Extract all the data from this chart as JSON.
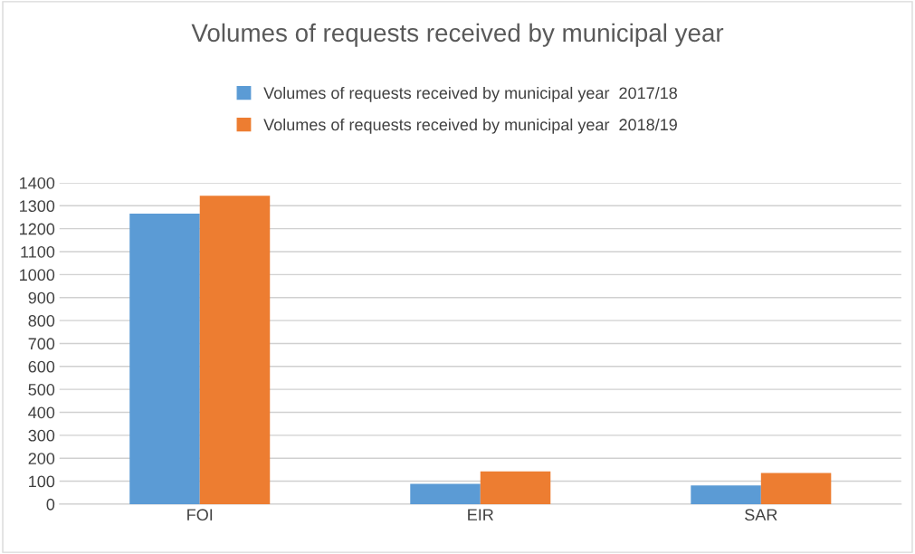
{
  "chart_data": {
    "type": "bar",
    "title": "Volumes of requests received by municipal year",
    "categories": [
      "FOI",
      "EIR",
      "SAR"
    ],
    "series": [
      {
        "name": "Volumes of requests received by municipal year  2017/18",
        "color": "#5b9bd5",
        "values": [
          1266,
          88,
          82
        ]
      },
      {
        "name": "Volumes of requests received by municipal year  2018/19",
        "color": "#ed7d31",
        "values": [
          1344,
          143,
          136
        ]
      }
    ],
    "ylim": [
      0,
      1400
    ],
    "yticks": [
      0,
      100,
      200,
      300,
      400,
      500,
      600,
      700,
      800,
      900,
      1000,
      1100,
      1200,
      1300,
      1400
    ],
    "grid": "y",
    "legend": "top"
  }
}
